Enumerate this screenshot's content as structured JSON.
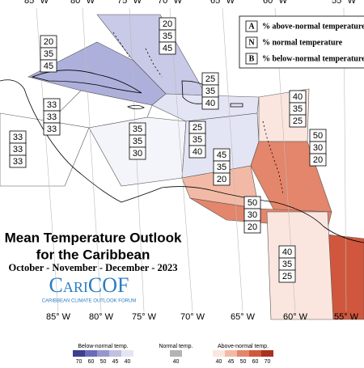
{
  "axes": {
    "top_labels": [
      "85° W",
      "80° W",
      "75° W",
      "70° W",
      "65° W",
      "60° W",
      "55° W"
    ],
    "bottom_labels": [
      "85° W",
      "80° W",
      "75° W",
      "70° W",
      "65° W",
      "60° W",
      "55° W"
    ]
  },
  "key": {
    "rows": [
      {
        "letter": "A",
        "text": "% above-normal temperature"
      },
      {
        "letter": "N",
        "text": "% normal temperature"
      },
      {
        "letter": "B",
        "text": "% below-normal temperature"
      }
    ]
  },
  "title": {
    "line1": "Mean Temperature Outlook",
    "line2": "for the Caribbean",
    "period": "October - November - December - 2023",
    "logo": "CariCOF",
    "logo_subtitle": "CARIBBEAN CLIMATE OUTLOOK FORUM"
  },
  "regions": [
    {
      "values": [
        20,
        35,
        45
      ],
      "color": "#c9c9e8"
    },
    {
      "values": [
        20,
        35,
        45
      ],
      "color": "#aeb0dc"
    },
    {
      "values": [
        33,
        33,
        33
      ],
      "color": "#ffffff"
    },
    {
      "values": [
        33,
        33,
        33
      ],
      "color": "#ffffff"
    },
    {
      "values": [
        35,
        35,
        30
      ],
      "color": "#f4f4fb"
    },
    {
      "values": [
        25,
        35,
        40
      ],
      "color": "#e4e5f4"
    },
    {
      "values": [
        25,
        35,
        40
      ],
      "color": "#e4e5f4"
    },
    {
      "values": [
        40,
        35,
        25
      ],
      "color": "#fbe6df"
    },
    {
      "values": [
        50,
        30,
        20
      ],
      "color": "#e3866b"
    },
    {
      "values": [
        45,
        35,
        20
      ],
      "color": "#f2baa6"
    },
    {
      "values": [
        50,
        30,
        20
      ],
      "color": "#e3866b"
    },
    {
      "values": [
        40,
        35,
        25
      ],
      "color": "#fbe6df"
    }
  ],
  "colorbar": {
    "below": {
      "label": "Below-normal temp.",
      "steps": [
        {
          "value": 70,
          "color": "#3c3f8f"
        },
        {
          "value": 60,
          "color": "#6a6db5"
        },
        {
          "value": 50,
          "color": "#9597cc"
        },
        {
          "value": 45,
          "color": "#bfc0e2"
        },
        {
          "value": 40,
          "color": "#e4e5f4"
        }
      ]
    },
    "normal": {
      "label": "Normal temp.",
      "steps": [
        {
          "value": 40,
          "color": "#b4b4b4"
        }
      ]
    },
    "above": {
      "label": "Above-normal temp.",
      "steps": [
        {
          "value": 40,
          "color": "#fbe6df"
        },
        {
          "value": 45,
          "color": "#f2baa6"
        },
        {
          "value": 50,
          "color": "#e3866b"
        },
        {
          "value": 60,
          "color": "#d0573e"
        },
        {
          "value": 70,
          "color": "#a8321f"
        }
      ]
    }
  }
}
